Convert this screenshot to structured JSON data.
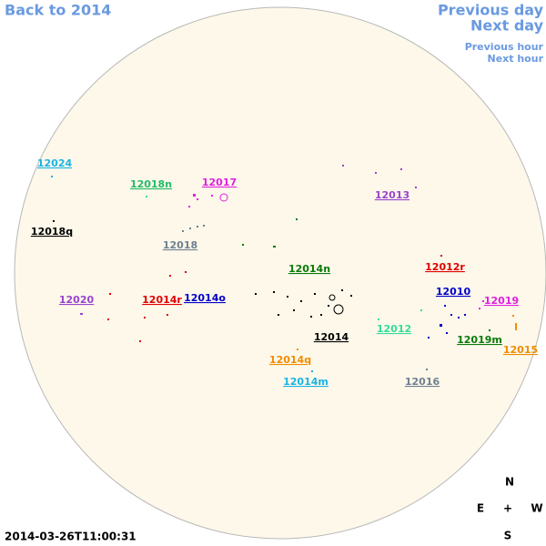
{
  "nav": {
    "back": "Back to 2014",
    "previous_day": "Previous day",
    "next_day": "Next day",
    "previous_hour": "Previous hour",
    "next_hour": "Next hour"
  },
  "regions": [
    "12024",
    "12018n",
    "12017",
    "12013",
    "12018q",
    "12018",
    "12014n",
    "12012r",
    "12020",
    "12014r",
    "12014o",
    "12010",
    "12019",
    "12012",
    "12014",
    "12019m",
    "12015",
    "12014q",
    "12014m",
    "12016"
  ],
  "compass": {
    "north": "N",
    "east": "E",
    "center": "+",
    "west": "W",
    "south": "S"
  },
  "timestamp": "2014-03-26T11:00:31"
}
